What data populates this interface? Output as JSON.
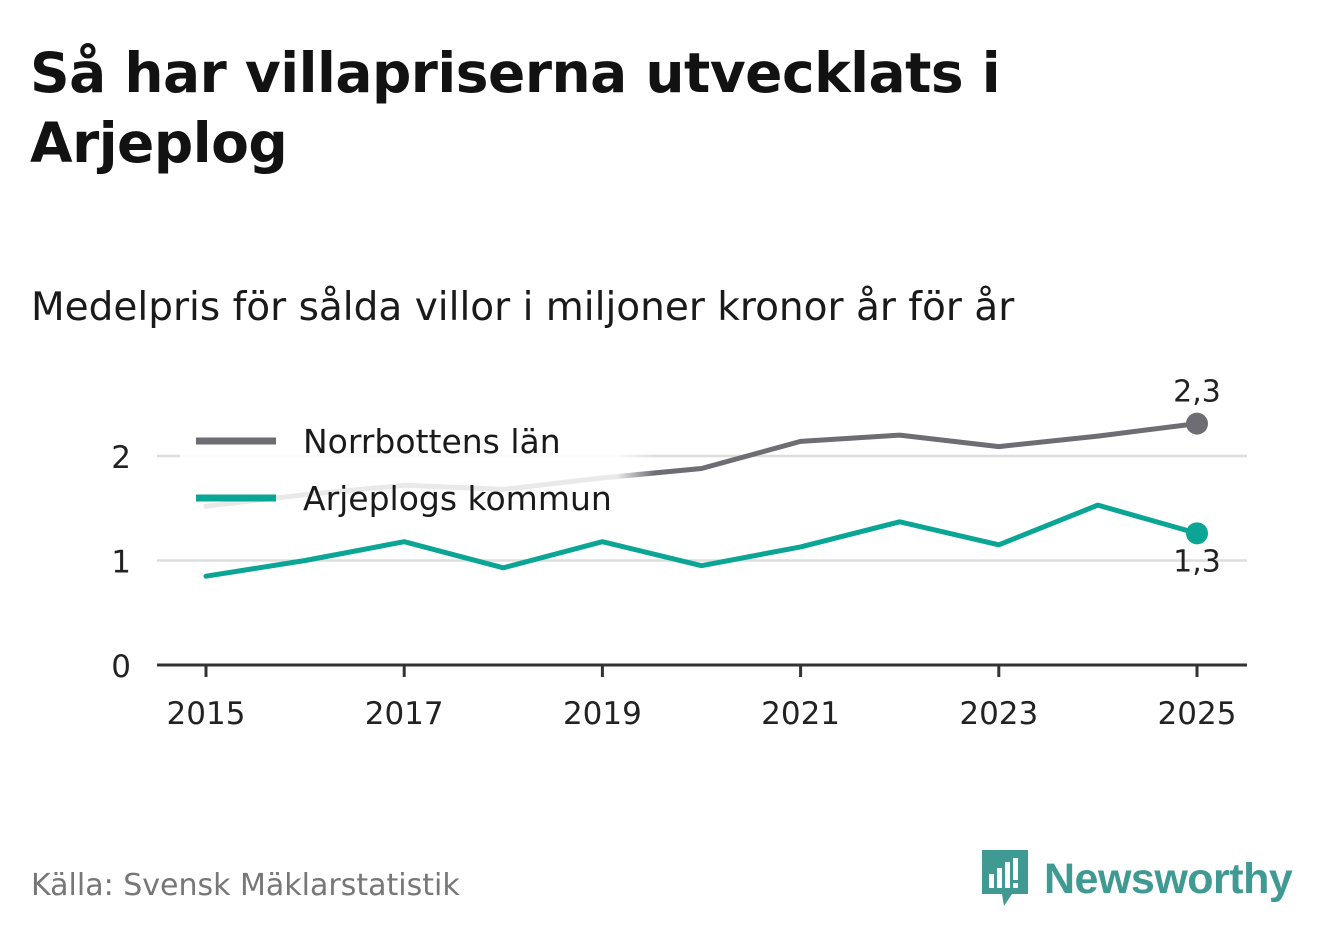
{
  "title": "Så har villapriserna utvecklats i Arjeplog",
  "subtitle": "Medelpris för sålda villor i miljoner kronor år för år",
  "source": "Källa: Svensk Mäklarstatistik",
  "brand": "Newsworthy",
  "colors": {
    "norrbotten": "#6e6d73",
    "arjeplog": "#0ba596",
    "grid": "#dddddd",
    "axis": "#333333",
    "brand": "#3e9a92"
  },
  "chart_data": {
    "type": "line",
    "x": [
      2015,
      2016,
      2017,
      2018,
      2019,
      2020,
      2021,
      2022,
      2023,
      2024,
      2025
    ],
    "xticks": [
      2015,
      2017,
      2019,
      2021,
      2023,
      2025
    ],
    "yticks": [
      0,
      1,
      2
    ],
    "ylim": [
      0,
      2.5
    ],
    "series": [
      {
        "name": "Norrbottens län",
        "key": "norrbotten",
        "values": [
          1.52,
          1.63,
          1.72,
          1.68,
          1.79,
          1.88,
          2.14,
          2.2,
          2.09,
          2.19,
          2.31
        ],
        "end_label": "2,3",
        "label_position": "above"
      },
      {
        "name": "Arjeplogs kommun",
        "key": "arjeplog",
        "values": [
          0.85,
          1.0,
          1.18,
          0.93,
          1.18,
          0.95,
          1.13,
          1.37,
          1.15,
          1.53,
          1.26
        ],
        "end_label": "1,3",
        "label_position": "below"
      }
    ],
    "legend_position": "top-left"
  }
}
